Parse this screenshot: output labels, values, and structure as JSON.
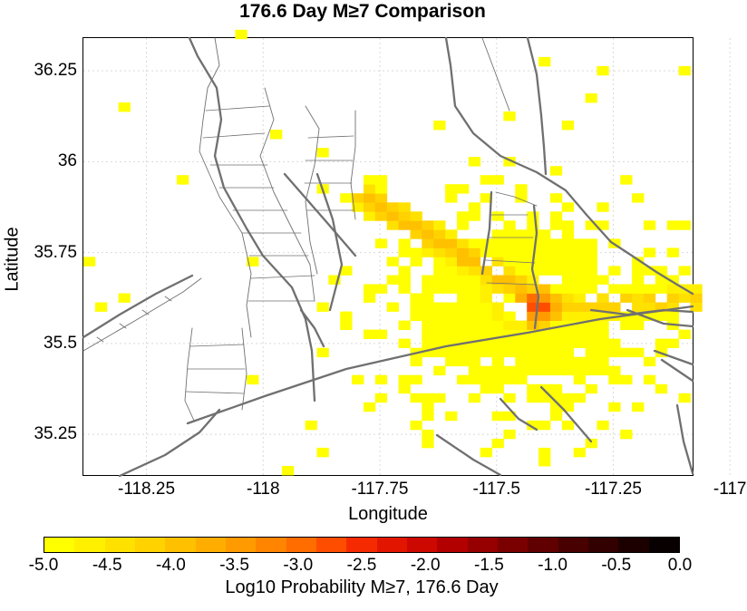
{
  "title": "176.6 Day M≥7 Comparison",
  "map": {
    "x_label": "Longitude",
    "y_label": "Latitude",
    "x_range": [
      -118.385,
      -117.08
    ],
    "y_range": [
      35.138,
      36.34
    ],
    "x_ticks": [
      "-118.25",
      "-118",
      "-117.75",
      "-117.5",
      "-117.25",
      "-117"
    ],
    "x_tick_values": [
      -118.25,
      -118,
      -117.75,
      -117.5,
      -117.25,
      -117
    ],
    "y_ticks": [
      "36.25",
      "36",
      "35.75",
      "35.5",
      "35.25"
    ],
    "y_tick_values": [
      36.25,
      36,
      35.75,
      35.5,
      35.25
    ],
    "grid": true,
    "grid_color": "#d9d9d9",
    "fault_color": "#707070"
  },
  "colorbar": {
    "label": "Log10 Probability M≥7, 176.6 Day",
    "tick_labels": [
      "-5.0",
      "-4.5",
      "-4.0",
      "-3.5",
      "-3.0",
      "-2.5",
      "-2.0",
      "-1.5",
      "-1.0",
      "-0.5",
      "0.0"
    ],
    "range": [
      -5.0,
      0.0
    ],
    "colors": [
      "#ffff00",
      "#fff000",
      "#ffe100",
      "#ffd200",
      "#ffc000",
      "#ffae00",
      "#ff9a00",
      "#ff8400",
      "#ff6c00",
      "#ff4d00",
      "#f52a00",
      "#e21600",
      "#cd0800",
      "#b20000",
      "#960000",
      "#7a0000",
      "#600000",
      "#480000",
      "#320000",
      "#1c0000",
      "#080000"
    ]
  },
  "chart_data": {
    "type": "heatmap",
    "title": "176.6 Day M≥7 Comparison",
    "xlabel": "Longitude",
    "ylabel": "Latitude",
    "value_label": "Log10 Probability M≥7, 176.6 Day",
    "value_range": [
      -5.0,
      0.0
    ],
    "cell_size_deg": 0.025,
    "features": [
      {
        "name": "main-trend",
        "from": [
          -117.78,
          35.9
        ],
        "to": [
          -117.38,
          35.6
        ],
        "peak": -4.0,
        "spread": 0.03
      },
      {
        "name": "east-trend",
        "from": [
          -117.38,
          35.6
        ],
        "to": [
          -117.06,
          35.62
        ],
        "peak": -4.3,
        "spread": 0.035
      },
      {
        "name": "epicenter",
        "center": [
          -117.41,
          35.6
        ],
        "peak": -2.7,
        "spread": 0.025
      },
      {
        "name": "epicenter-core",
        "center": [
          -117.43,
          35.62
        ],
        "peak": -2.45,
        "spread": 0.012
      },
      {
        "name": "diffuse-field",
        "center": [
          -117.45,
          35.6
        ],
        "peak": -4.8,
        "spread": 0.18
      }
    ]
  }
}
